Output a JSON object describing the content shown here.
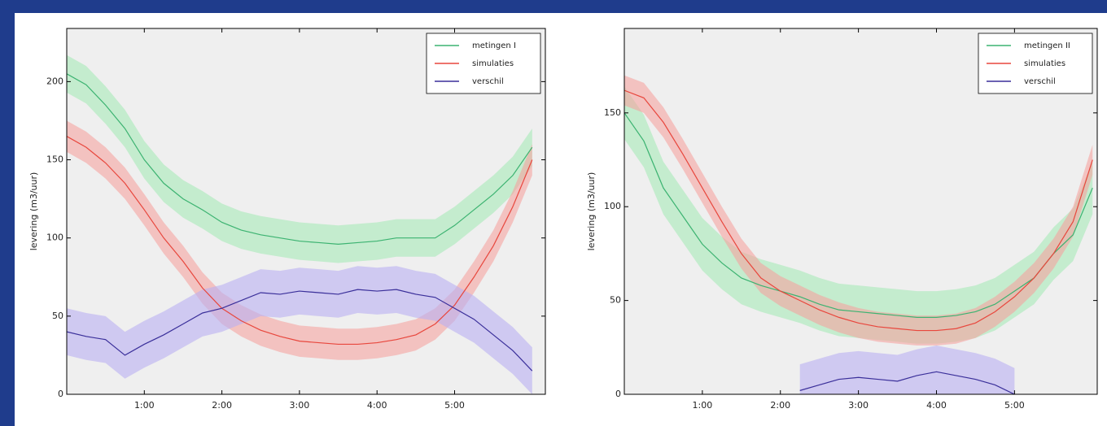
{
  "chart_data": [
    {
      "type": "line",
      "y_label": "levering (m3/uur)",
      "legend": "upper right",
      "grid": false,
      "xlim": [
        0,
        6.17
      ],
      "ylim": [
        0,
        234
      ],
      "xticks": [
        {
          "value": 1,
          "label": "1:00"
        },
        {
          "value": 2,
          "label": "2:00"
        },
        {
          "value": 3,
          "label": "3:00"
        },
        {
          "value": 4,
          "label": "4:00"
        },
        {
          "value": 5,
          "label": "5:00"
        }
      ],
      "yticks": [
        0,
        50,
        100,
        150,
        200
      ],
      "x": [
        0,
        0.25,
        0.5,
        0.75,
        1,
        1.25,
        1.5,
        1.75,
        2,
        2.25,
        2.5,
        2.75,
        3,
        3.25,
        3.5,
        3.75,
        4,
        4.25,
        4.5,
        4.75,
        5,
        5.25,
        5.5,
        5.75,
        6
      ],
      "series": [
        {
          "name": "metingen I",
          "color": "#3cb371",
          "band_color": "#a6eab8",
          "error": 12,
          "values": [
            205,
            198,
            185,
            170,
            150,
            135,
            125,
            118,
            110,
            105,
            102,
            100,
            98,
            97,
            96,
            97,
            98,
            100,
            100,
            100,
            108,
            118,
            128,
            140,
            158
          ]
        },
        {
          "name": "simulaties",
          "color": "#e8473d",
          "band_color": "#f5a3a0",
          "error": 10,
          "values": [
            165,
            158,
            148,
            135,
            118,
            100,
            85,
            68,
            55,
            47,
            41,
            37,
            34,
            33,
            32,
            32,
            33,
            35,
            38,
            45,
            57,
            75,
            95,
            120,
            150
          ]
        },
        {
          "name": "verschil",
          "color": "#3a2f9a",
          "band_color": "#b9aff2",
          "error": 15,
          "values": [
            40,
            37,
            35,
            25,
            32,
            38,
            45,
            52,
            55,
            60,
            65,
            64,
            66,
            65,
            64,
            67,
            66,
            67,
            64,
            62,
            55,
            48,
            38,
            28,
            15
          ]
        }
      ]
    },
    {
      "type": "line",
      "y_label": "levering (m3/uur)",
      "legend": "upper right",
      "grid": false,
      "xlim": [
        0,
        6.06
      ],
      "ylim": [
        0,
        195
      ],
      "xticks": [
        {
          "value": 1,
          "label": "1:00"
        },
        {
          "value": 2,
          "label": "2:00"
        },
        {
          "value": 3,
          "label": "3:00"
        },
        {
          "value": 4,
          "label": "4:00"
        },
        {
          "value": 5,
          "label": "5:00"
        }
      ],
      "yticks": [
        0,
        50,
        100,
        150
      ],
      "x": [
        0,
        0.25,
        0.5,
        0.75,
        1,
        1.25,
        1.5,
        1.75,
        2,
        2.25,
        2.5,
        2.75,
        3,
        3.25,
        3.5,
        3.75,
        4,
        4.25,
        4.5,
        4.75,
        5,
        5.25,
        5.5,
        5.75,
        6
      ],
      "series": [
        {
          "name": "metingen II",
          "color": "#3cb371",
          "band_color": "#a6eab8",
          "error": 14,
          "values": [
            150,
            135,
            110,
            95,
            80,
            70,
            62,
            58,
            55,
            52,
            48,
            45,
            44,
            43,
            42,
            41,
            41,
            42,
            44,
            48,
            55,
            62,
            75,
            85,
            110
          ]
        },
        {
          "name": "simulaties",
          "color": "#e8473d",
          "band_color": "#f5a3a0",
          "error": 8,
          "values": [
            162,
            158,
            145,
            128,
            110,
            92,
            75,
            62,
            55,
            50,
            45,
            41,
            38,
            36,
            35,
            34,
            34,
            35,
            38,
            44,
            52,
            62,
            75,
            92,
            125
          ]
        },
        {
          "name": "verschil",
          "color": "#3a2f9a",
          "band_color": "#b9aff2",
          "error": 14,
          "values": [
            null,
            null,
            null,
            null,
            null,
            null,
            null,
            null,
            null,
            2,
            5,
            8,
            9,
            8,
            7,
            10,
            12,
            10,
            8,
            5,
            0,
            null,
            null,
            null,
            null
          ]
        }
      ]
    }
  ]
}
